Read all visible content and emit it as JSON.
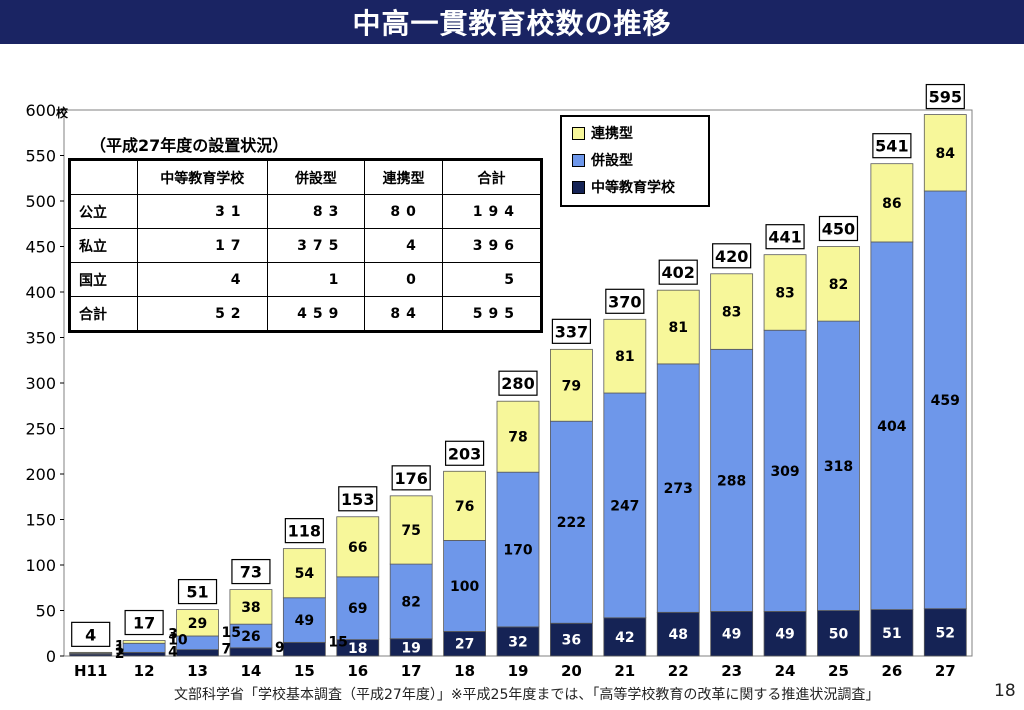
{
  "title": "中高一貫教育校数の推移",
  "source_note": "文部科学省「学校基本調査（平成27年度）」※平成25年度までは、「高等学校教育の改革に関する推進状況調査」",
  "page_number": "18",
  "table": {
    "caption": "（平成27年度の設置状況）",
    "headers": [
      "",
      "中等教育学校",
      "併設型",
      "連携型",
      "合計"
    ],
    "rows": [
      [
        "公立",
        "31",
        "83",
        "80",
        "194"
      ],
      [
        "私立",
        "17",
        "375",
        "4",
        "396"
      ],
      [
        "国立",
        "4",
        "1",
        "0",
        "5"
      ],
      [
        "合計",
        "52",
        "459",
        "84",
        "595"
      ]
    ]
  },
  "colors": {
    "連携型": "#f7f79a",
    "併設型": "#6e97ea",
    "中等教育学校": "#152355",
    "title_bg": "#1a2463"
  },
  "chart_data": {
    "type": "bar",
    "stacked": true,
    "categories": [
      "H11",
      "12",
      "13",
      "14",
      "15",
      "16",
      "17",
      "18",
      "19",
      "20",
      "21",
      "22",
      "23",
      "24",
      "25",
      "26",
      "27"
    ],
    "series": [
      {
        "name": "中等教育学校",
        "values": [
          2,
          4,
          7,
          9,
          15,
          18,
          19,
          27,
          32,
          36,
          42,
          48,
          49,
          49,
          50,
          51,
          52
        ]
      },
      {
        "name": "併設型",
        "values": [
          1,
          10,
          15,
          26,
          49,
          69,
          82,
          100,
          170,
          222,
          247,
          273,
          288,
          309,
          318,
          404,
          459
        ]
      },
      {
        "name": "連携型",
        "values": [
          1,
          3,
          29,
          38,
          54,
          66,
          75,
          76,
          78,
          79,
          81,
          81,
          83,
          83,
          82,
          86,
          84
        ]
      }
    ],
    "segment_labels": [
      [
        "2",
        "1",
        "1"
      ],
      [
        "4",
        "10",
        "3"
      ],
      [
        "7",
        "15",
        "29"
      ],
      [
        "9",
        "26",
        "38"
      ],
      [
        "15",
        "49",
        "54"
      ],
      [
        "18",
        "69",
        "66"
      ],
      [
        "19",
        "82",
        "75"
      ],
      [
        "27",
        "100",
        "76"
      ],
      [
        "32",
        "170",
        "78"
      ],
      [
        "36",
        "222",
        "79"
      ],
      [
        "42",
        "247",
        "81"
      ],
      [
        "48",
        "273",
        "81"
      ],
      [
        "49",
        "288",
        "83"
      ],
      [
        "49",
        "309",
        "83"
      ],
      [
        "50",
        "318",
        "82"
      ],
      [
        "51",
        "404",
        "86"
      ],
      [
        "52",
        "459",
        "84"
      ]
    ],
    "totals": [
      "4",
      "17",
      "51",
      "73",
      "118",
      "153",
      "176",
      "203",
      "280",
      "337",
      "370",
      "402",
      "420",
      "441",
      "450",
      "541",
      "595"
    ],
    "y_unit": "校",
    "y_ticks": [
      "0",
      "50",
      "100",
      "150",
      "200",
      "250",
      "300",
      "350",
      "400",
      "450",
      "500",
      "550",
      "600"
    ],
    "ylim": [
      0,
      600
    ],
    "legend": [
      "連携型",
      "併設型",
      "中等教育学校"
    ],
    "legend_position": "top-right"
  }
}
